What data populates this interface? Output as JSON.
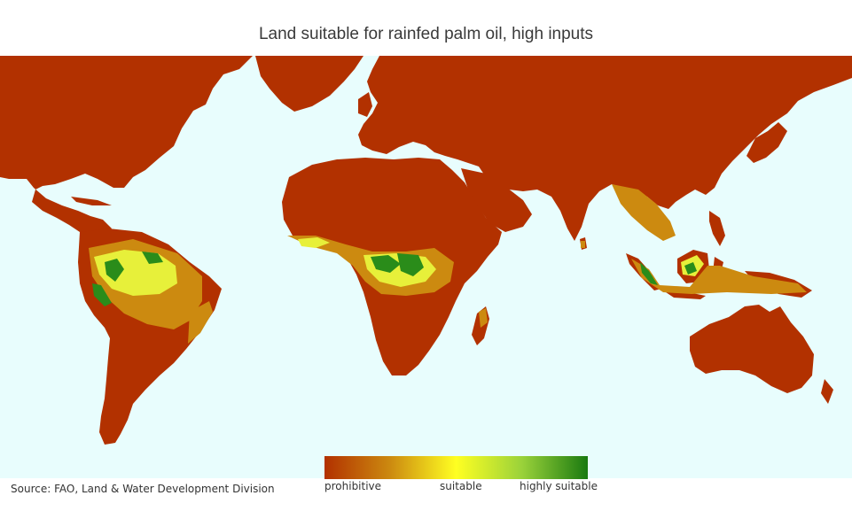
{
  "title": "Land suitable for rainfed palm oil, high inputs",
  "source": "Source: FAO, Land & Water Development Division",
  "colors": {
    "ocean": "#e8fdfd",
    "prohibitive": "#b23100",
    "marginal": "#cc8a10",
    "suitable": "#ffff22",
    "moderately_suitable": "#9ad23a",
    "highly_suitable": "#1a7a10"
  },
  "legend": {
    "min_label": "prohibitive",
    "mid_label": "suitable",
    "max_label": "highly suitable"
  }
}
